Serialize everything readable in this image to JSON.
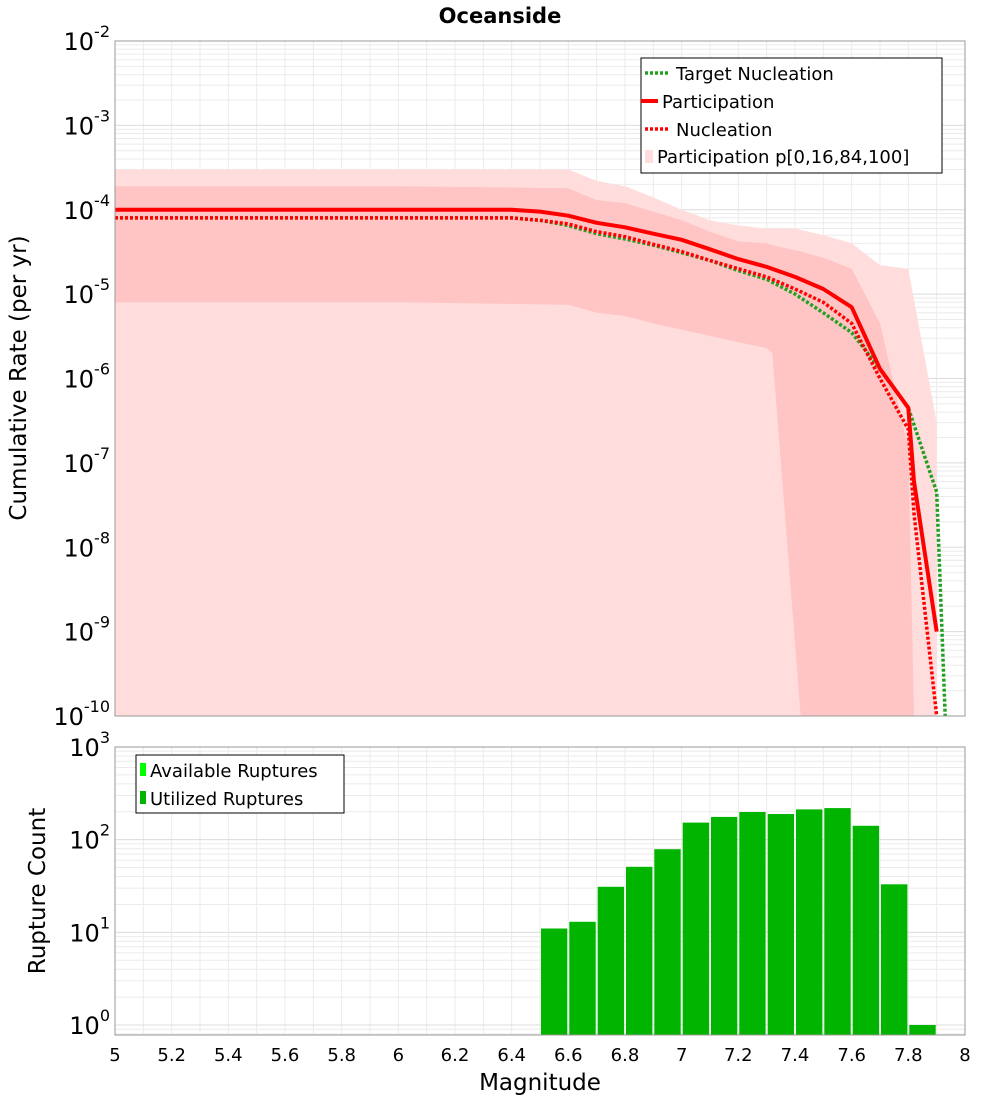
{
  "title": "Oceanside",
  "chart_data": [
    {
      "type": "line",
      "yscale": "log",
      "xlim": [
        5,
        8
      ],
      "ylim": [
        1e-10,
        0.01
      ],
      "ylabel": "Cumulative Rate (per yr)",
      "xlabel": "",
      "grid": true,
      "legend_position": "top-right",
      "x_ticks": [],
      "y_ticks": [
        {
          "base": "10",
          "exp": "-10",
          "value": 1e-10
        },
        {
          "base": "10",
          "exp": "-9",
          "value": 1e-09
        },
        {
          "base": "10",
          "exp": "-8",
          "value": 1e-08
        },
        {
          "base": "10",
          "exp": "-7",
          "value": 1e-07
        },
        {
          "base": "10",
          "exp": "-6",
          "value": 1e-06
        },
        {
          "base": "10",
          "exp": "-5",
          "value": 1e-05
        },
        {
          "base": "10",
          "exp": "-4",
          "value": 0.0001
        },
        {
          "base": "10",
          "exp": "-3",
          "value": 0.001
        },
        {
          "base": "10",
          "exp": "-2",
          "value": 0.01
        }
      ],
      "bands": [
        {
          "name": "Participation p[0,16,84,100]",
          "color": "#ffdddd",
          "x": [
            5.0,
            6.0,
            6.6,
            6.7,
            6.8,
            6.9,
            7.0,
            7.1,
            7.2,
            7.3,
            7.4,
            7.5,
            7.6,
            7.7,
            7.8,
            7.9
          ],
          "low": [
            1e-10,
            1e-10,
            1e-10,
            1e-10,
            1e-10,
            1e-10,
            1e-10,
            1e-10,
            1e-10,
            1e-10,
            1e-10,
            1e-10,
            1e-10,
            1e-10,
            1e-10,
            1e-10
          ],
          "high": [
            0.0003,
            0.0003,
            0.0003,
            0.00022,
            0.00019,
            0.00014,
            0.0001,
            7.5e-05,
            6.5e-05,
            6e-05,
            6e-05,
            5e-05,
            4e-05,
            2.2e-05,
            2e-05,
            3e-07
          ]
        },
        {
          "name": "",
          "color": "#ffc4c4",
          "x": [
            5.0,
            6.0,
            6.6,
            6.7,
            6.8,
            6.9,
            7.0,
            7.1,
            7.2,
            7.3,
            7.32,
            7.42,
            7.5,
            7.6,
            7.7,
            7.8,
            7.82
          ],
          "low": [
            8e-06,
            8e-06,
            7.5e-06,
            6e-06,
            5.5e-06,
            4.5e-06,
            3.8e-06,
            3.2e-06,
            2.7e-06,
            2.3e-06,
            2e-06,
            1e-10,
            1e-10,
            1e-10,
            1e-10,
            1e-10,
            1e-10
          ],
          "high": [
            0.00019,
            0.00019,
            0.00018,
            0.00013,
            0.00012,
            9.5e-05,
            7.5e-05,
            5.5e-05,
            4.2e-05,
            4e-05,
            3.8e-05,
            3.2e-05,
            2.7e-05,
            2e-05,
            4.5e-06,
            1.5e-07,
            1e-10
          ]
        }
      ],
      "series": [
        {
          "name": "Target Nucleation",
          "color": "#22a022",
          "dash": "dotted",
          "x": [
            5.0,
            6.4,
            6.5,
            6.6,
            6.7,
            6.8,
            6.9,
            7.0,
            7.1,
            7.2,
            7.3,
            7.4,
            7.5,
            7.6,
            7.7,
            7.8,
            7.9,
            7.93
          ],
          "y": [
            8e-05,
            8e-05,
            7.5e-05,
            6.5e-05,
            5.2e-05,
            4.5e-05,
            3.8e-05,
            3.1e-05,
            2.5e-05,
            1.9e-05,
            1.5e-05,
            1e-05,
            6e-06,
            3.5e-06,
            1.3e-06,
            4.5e-07,
            4.5e-08,
            1e-10
          ]
        },
        {
          "name": "Participation",
          "color": "#ff0000",
          "dash": "solid",
          "x": [
            5.0,
            6.4,
            6.5,
            6.6,
            6.7,
            6.8,
            6.9,
            7.0,
            7.1,
            7.2,
            7.3,
            7.4,
            7.5,
            7.6,
            7.7,
            7.8,
            7.82,
            7.9
          ],
          "y": [
            0.0001,
            0.0001,
            9.5e-05,
            8.5e-05,
            7e-05,
            6.2e-05,
            5.2e-05,
            4.4e-05,
            3.4e-05,
            2.6e-05,
            2.1e-05,
            1.6e-05,
            1.15e-05,
            7e-06,
            1.3e-06,
            4.5e-07,
            6e-08,
            1e-09
          ]
        },
        {
          "name": "Nucleation",
          "color": "#ff0000",
          "dash": "dotted",
          "x": [
            5.0,
            6.4,
            6.5,
            6.6,
            6.7,
            6.8,
            6.9,
            7.0,
            7.1,
            7.2,
            7.3,
            7.4,
            7.5,
            7.6,
            7.7,
            7.8,
            7.82,
            7.9
          ],
          "y": [
            8e-05,
            8e-05,
            7.5e-05,
            6.8e-05,
            5.5e-05,
            4.8e-05,
            3.9e-05,
            3.2e-05,
            2.5e-05,
            2e-05,
            1.6e-05,
            1.15e-05,
            8e-06,
            4.5e-06,
            1e-06,
            2.5e-07,
            2.5e-08,
            1e-10
          ]
        }
      ]
    },
    {
      "type": "bar",
      "yscale": "log",
      "xlim": [
        5,
        8
      ],
      "ylim": [
        0.78,
        1000
      ],
      "ylabel": "Rupture Count",
      "xlabel": "Magnitude",
      "grid": true,
      "legend_position": "top-left",
      "bar_width": 0.093,
      "x_ticks": [
        "5",
        "5.2",
        "5.4",
        "5.6",
        "5.8",
        "6",
        "6.2",
        "6.4",
        "6.6",
        "6.8",
        "7",
        "7.2",
        "7.4",
        "7.6",
        "7.8",
        "8"
      ],
      "y_ticks": [
        {
          "base": "10",
          "exp": "0",
          "value": 1
        },
        {
          "base": "10",
          "exp": "1",
          "value": 10
        },
        {
          "base": "10",
          "exp": "2",
          "value": 100
        },
        {
          "base": "10",
          "exp": "3",
          "value": 1000
        }
      ],
      "legend": [
        {
          "name": "Available Ruptures",
          "color": "#00ff00"
        },
        {
          "name": "Utilized Ruptures",
          "color": "#00b400"
        }
      ],
      "series": [
        {
          "name": "Utilized Ruptures",
          "color": "#00b400",
          "x": [
            6.55,
            6.65,
            6.75,
            6.85,
            6.95,
            7.05,
            7.15,
            7.25,
            7.35,
            7.45,
            7.55,
            7.65,
            7.75,
            7.85
          ],
          "values": [
            11,
            13,
            31,
            51,
            79,
            153,
            176,
            199,
            189,
            212,
            219,
            141,
            33,
            1
          ]
        }
      ]
    }
  ]
}
